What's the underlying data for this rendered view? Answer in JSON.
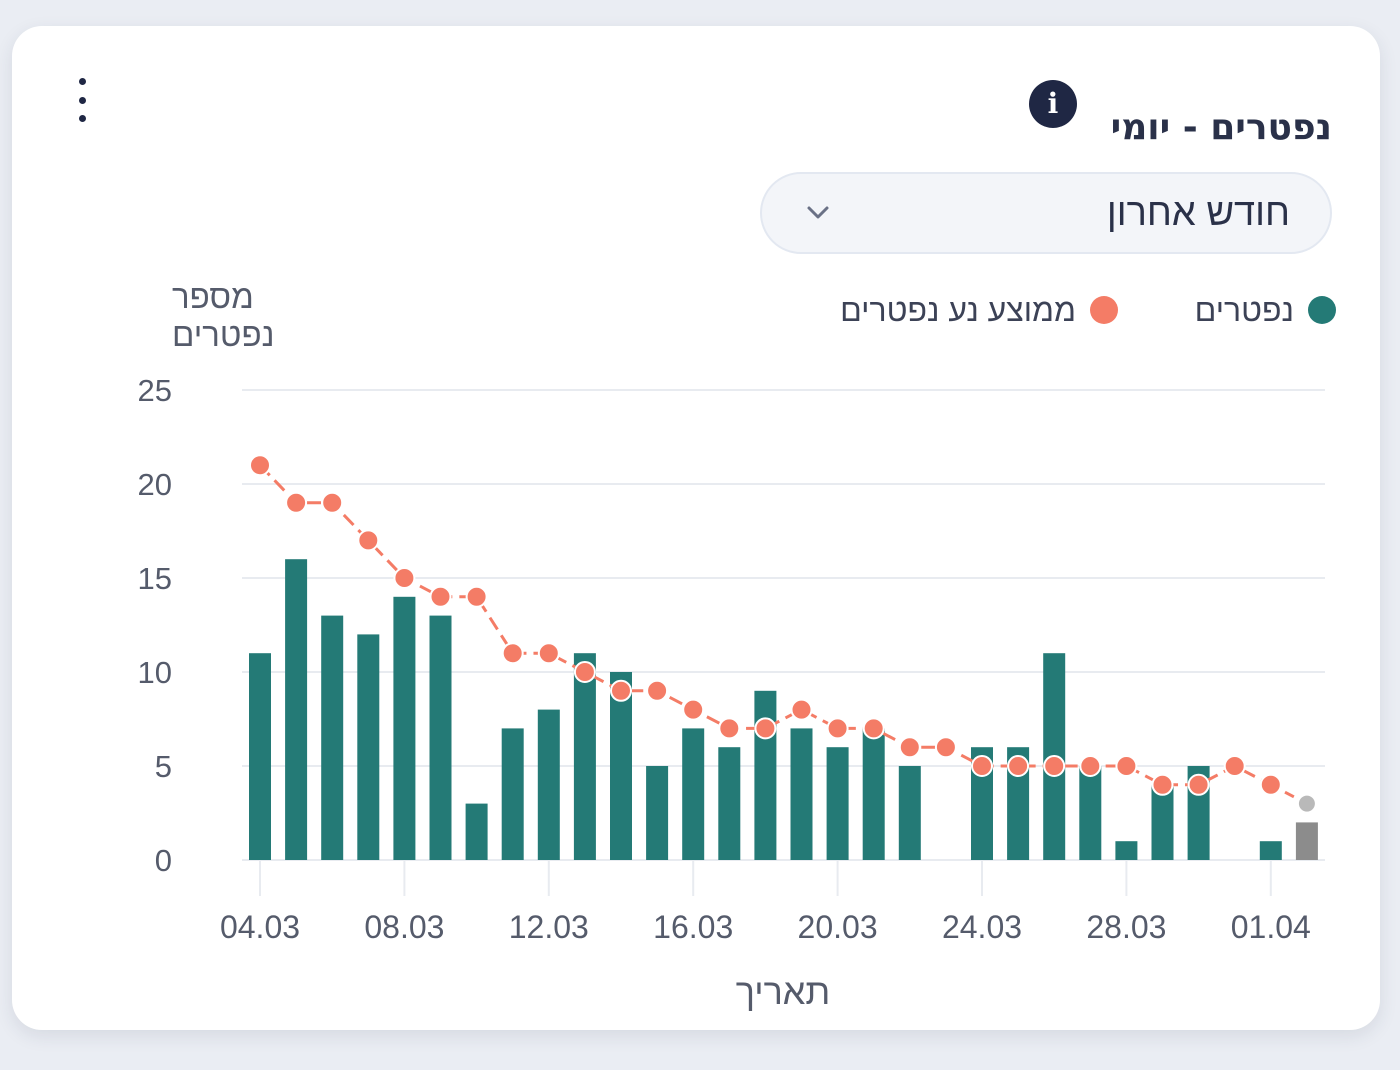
{
  "card": {
    "title": "נפטרים - יומי",
    "info_icon": "info-icon",
    "info_glyph": "i",
    "menu_icon": "more-vertical-icon"
  },
  "range_select": {
    "value": "חודש אחרון",
    "icon": "chevron-down-icon"
  },
  "colors": {
    "bar": "#247a76",
    "bar_partial": "#8c8c8c",
    "line": "#f47c66",
    "point_partial": "#b9b9b9",
    "grid": "#e8ebf0",
    "axis_text": "#555b6b"
  },
  "chart_data": {
    "type": "bar",
    "ylabel_lines": [
      "מספר",
      "נפטרים"
    ],
    "xlabel": "תאריך",
    "ylim": [
      0,
      25
    ],
    "yticks": [
      0,
      5,
      10,
      15,
      20,
      25
    ],
    "x": [
      "2021-03-04",
      "2021-03-05",
      "2021-03-06",
      "2021-03-07",
      "2021-03-08",
      "2021-03-09",
      "2021-03-10",
      "2021-03-11",
      "2021-03-12",
      "2021-03-13",
      "2021-03-14",
      "2021-03-15",
      "2021-03-16",
      "2021-03-17",
      "2021-03-18",
      "2021-03-19",
      "2021-03-20",
      "2021-03-21",
      "2021-03-22",
      "2021-03-23",
      "2021-03-24",
      "2021-03-25",
      "2021-03-26",
      "2021-03-27",
      "2021-03-28",
      "2021-03-29",
      "2021-03-30",
      "2021-03-31",
      "2021-04-01",
      "2021-04-02"
    ],
    "xtick_labels": [
      "04.03",
      "08.03",
      "12.03",
      "16.03",
      "20.03",
      "24.03",
      "28.03",
      "01.04"
    ],
    "xtick_dates": [
      "2021-03-04",
      "2021-03-08",
      "2021-03-12",
      "2021-03-16",
      "2021-03-20",
      "2021-03-24",
      "2021-03-28",
      "2021-04-01"
    ],
    "series": [
      {
        "name": "נפטרים",
        "type": "bar",
        "values": [
          11,
          16,
          13,
          12,
          14,
          13,
          3,
          7,
          8,
          11,
          10,
          5,
          7,
          6,
          9,
          7,
          6,
          7,
          5,
          0,
          6,
          6,
          11,
          5,
          1,
          4,
          5,
          0,
          1,
          2
        ]
      },
      {
        "name": "ממוצע נע נפטרים",
        "type": "line",
        "values": [
          21,
          19,
          19,
          17,
          15,
          14,
          14,
          11,
          11,
          10,
          9,
          9,
          8,
          7,
          7,
          8,
          7,
          7,
          6,
          6,
          5,
          5,
          5,
          5,
          5,
          4,
          4,
          5,
          4,
          3
        ]
      }
    ],
    "partial_last_point": true,
    "grid": true,
    "legend_position": "top-right"
  }
}
